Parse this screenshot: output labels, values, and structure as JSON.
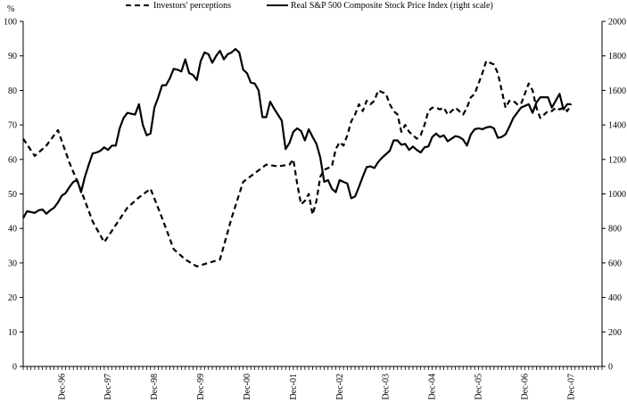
{
  "chart_data": {
    "type": "line",
    "title": "",
    "left_axis": {
      "label": "%",
      "ylim": [
        0,
        100
      ],
      "ticks": [
        "0",
        "10",
        "20",
        "30",
        "40",
        "50",
        "60",
        "70",
        "80",
        "90",
        "100"
      ]
    },
    "right_axis": {
      "label": "",
      "ylim": [
        0,
        2000
      ],
      "ticks": [
        "0",
        "200",
        "400",
        "600",
        "800",
        "1000",
        "1200",
        "1400",
        "1600",
        "1800",
        "2000"
      ]
    },
    "x_axis": {
      "range_months": [
        0,
        150
      ],
      "tick_labels": [
        "Dec-96",
        "Dec-97",
        "Dec-98",
        "Dec-99",
        "Dec-00",
        "Dec-01",
        "Dec-02",
        "Dec-03",
        "Dec-04",
        "Dec-05",
        "Dec-06",
        "Dec-07"
      ],
      "tick_label_months": [
        10,
        22,
        34,
        46,
        58,
        70,
        82,
        94,
        106,
        118,
        130,
        142
      ]
    },
    "legend": {
      "placement": "top"
    },
    "grid": false,
    "series": [
      {
        "name": "Investors' perceptions",
        "axis": "left",
        "style": "dashed",
        "color": "#000000",
        "points": [
          [
            0,
            66
          ],
          [
            3,
            61
          ],
          [
            6,
            64
          ],
          [
            9,
            68.5
          ],
          [
            12,
            59
          ],
          [
            15,
            51
          ],
          [
            18,
            42
          ],
          [
            21,
            36
          ],
          [
            24,
            41
          ],
          [
            27,
            46
          ],
          [
            30,
            49
          ],
          [
            33,
            51.5
          ],
          [
            36,
            43
          ],
          [
            39,
            34
          ],
          [
            42,
            31
          ],
          [
            45,
            29
          ],
          [
            48,
            30
          ],
          [
            51,
            31
          ],
          [
            54,
            43
          ],
          [
            57,
            53.5
          ],
          [
            60,
            56
          ],
          [
            63,
            58.5
          ],
          [
            66,
            58
          ],
          [
            69,
            58.5
          ],
          [
            70,
            60
          ],
          [
            71,
            53
          ],
          [
            72,
            47
          ],
          [
            73,
            48
          ],
          [
            74,
            50
          ],
          [
            75,
            44
          ],
          [
            76,
            48
          ],
          [
            77,
            55
          ],
          [
            78,
            57
          ],
          [
            79,
            57.5
          ],
          [
            80,
            58
          ],
          [
            81,
            63
          ],
          [
            82,
            65
          ],
          [
            83,
            64
          ],
          [
            84,
            67
          ],
          [
            85,
            71
          ],
          [
            86,
            73
          ],
          [
            87,
            76
          ],
          [
            88,
            74
          ],
          [
            89,
            77
          ],
          [
            90,
            76
          ],
          [
            91,
            77
          ],
          [
            92,
            80
          ],
          [
            93,
            79.5
          ],
          [
            94,
            79
          ],
          [
            95,
            76
          ],
          [
            96,
            74
          ],
          [
            97,
            73
          ],
          [
            98,
            68
          ],
          [
            99,
            70
          ],
          [
            100,
            68
          ],
          [
            101,
            67
          ],
          [
            102,
            66
          ],
          [
            103,
            67
          ],
          [
            104,
            70
          ],
          [
            105,
            74
          ],
          [
            106,
            75
          ],
          [
            107,
            75
          ],
          [
            108,
            74.5
          ],
          [
            109,
            75
          ],
          [
            110,
            73
          ],
          [
            111,
            74
          ],
          [
            112,
            75
          ],
          [
            113,
            74
          ],
          [
            114,
            73
          ],
          [
            115,
            75
          ],
          [
            116,
            78
          ],
          [
            117,
            79
          ],
          [
            118,
            82
          ],
          [
            119,
            85
          ],
          [
            120,
            88.5
          ],
          [
            121,
            88
          ],
          [
            122,
            87.5
          ],
          [
            123,
            85
          ],
          [
            124,
            80
          ],
          [
            125,
            75
          ],
          [
            126,
            77
          ],
          [
            127,
            77
          ],
          [
            128,
            76
          ],
          [
            129,
            76
          ],
          [
            130,
            79
          ],
          [
            131,
            82
          ],
          [
            132,
            80
          ],
          [
            133,
            75
          ],
          [
            134,
            72
          ],
          [
            135,
            73
          ],
          [
            136,
            74
          ],
          [
            137,
            74
          ],
          [
            138,
            75
          ],
          [
            139,
            74.5
          ],
          [
            140,
            75
          ],
          [
            141,
            74
          ],
          [
            142,
            76
          ]
        ]
      },
      {
        "name": "Real S&P 500 Composite Stock Price Index (right scale)",
        "axis": "right",
        "style": "solid",
        "color": "#000000",
        "points": [
          [
            0,
            860
          ],
          [
            1,
            900
          ],
          [
            2,
            895
          ],
          [
            3,
            890
          ],
          [
            4,
            905
          ],
          [
            5,
            910
          ],
          [
            6,
            885
          ],
          [
            7,
            905
          ],
          [
            8,
            920
          ],
          [
            9,
            950
          ],
          [
            10,
            990
          ],
          [
            11,
            1005
          ],
          [
            12,
            1040
          ],
          [
            13,
            1070
          ],
          [
            14,
            1080
          ],
          [
            15,
            1010
          ],
          [
            16,
            1100
          ],
          [
            17,
            1170
          ],
          [
            18,
            1235
          ],
          [
            19,
            1240
          ],
          [
            20,
            1250
          ],
          [
            21,
            1270
          ],
          [
            22,
            1255
          ],
          [
            23,
            1280
          ],
          [
            24,
            1280
          ],
          [
            25,
            1380
          ],
          [
            26,
            1440
          ],
          [
            27,
            1470
          ],
          [
            28,
            1465
          ],
          [
            29,
            1460
          ],
          [
            30,
            1520
          ],
          [
            31,
            1400
          ],
          [
            32,
            1340
          ],
          [
            33,
            1350
          ],
          [
            34,
            1500
          ],
          [
            35,
            1560
          ],
          [
            36,
            1630
          ],
          [
            37,
            1630
          ],
          [
            38,
            1670
          ],
          [
            39,
            1725
          ],
          [
            40,
            1720
          ],
          [
            41,
            1710
          ],
          [
            42,
            1780
          ],
          [
            43,
            1700
          ],
          [
            44,
            1690
          ],
          [
            45,
            1660
          ],
          [
            46,
            1770
          ],
          [
            47,
            1820
          ],
          [
            48,
            1810
          ],
          [
            49,
            1760
          ],
          [
            50,
            1800
          ],
          [
            51,
            1830
          ],
          [
            52,
            1780
          ],
          [
            53,
            1810
          ],
          [
            54,
            1820
          ],
          [
            55,
            1840
          ],
          [
            56,
            1820
          ],
          [
            57,
            1720
          ],
          [
            58,
            1700
          ],
          [
            59,
            1645
          ],
          [
            60,
            1640
          ],
          [
            61,
            1600
          ],
          [
            62,
            1445
          ],
          [
            63,
            1445
          ],
          [
            64,
            1535
          ],
          [
            65,
            1495
          ],
          [
            66,
            1460
          ],
          [
            67,
            1425
          ],
          [
            68,
            1260
          ],
          [
            69,
            1295
          ],
          [
            70,
            1360
          ],
          [
            71,
            1380
          ],
          [
            72,
            1365
          ],
          [
            73,
            1310
          ],
          [
            74,
            1375
          ],
          [
            75,
            1330
          ],
          [
            76,
            1290
          ],
          [
            77,
            1210
          ],
          [
            78,
            1070
          ],
          [
            79,
            1080
          ],
          [
            80,
            1030
          ],
          [
            81,
            1010
          ],
          [
            82,
            1080
          ],
          [
            83,
            1070
          ],
          [
            84,
            1060
          ],
          [
            85,
            975
          ],
          [
            86,
            985
          ],
          [
            87,
            1040
          ],
          [
            88,
            1100
          ],
          [
            89,
            1155
          ],
          [
            90,
            1160
          ],
          [
            91,
            1150
          ],
          [
            92,
            1185
          ],
          [
            93,
            1210
          ],
          [
            94,
            1230
          ],
          [
            95,
            1250
          ],
          [
            96,
            1310
          ],
          [
            97,
            1310
          ],
          [
            98,
            1285
          ],
          [
            99,
            1290
          ],
          [
            100,
            1255
          ],
          [
            101,
            1275
          ],
          [
            102,
            1255
          ],
          [
            103,
            1240
          ],
          [
            104,
            1270
          ],
          [
            105,
            1275
          ],
          [
            106,
            1330
          ],
          [
            107,
            1350
          ],
          [
            108,
            1330
          ],
          [
            109,
            1340
          ],
          [
            110,
            1305
          ],
          [
            111,
            1320
          ],
          [
            112,
            1335
          ],
          [
            113,
            1330
          ],
          [
            114,
            1315
          ],
          [
            115,
            1280
          ],
          [
            116,
            1345
          ],
          [
            117,
            1375
          ],
          [
            118,
            1380
          ],
          [
            119,
            1375
          ],
          [
            120,
            1385
          ],
          [
            121,
            1390
          ],
          [
            122,
            1380
          ],
          [
            123,
            1325
          ],
          [
            124,
            1330
          ],
          [
            125,
            1345
          ],
          [
            126,
            1390
          ],
          [
            127,
            1440
          ],
          [
            128,
            1470
          ],
          [
            129,
            1500
          ],
          [
            130,
            1510
          ],
          [
            131,
            1520
          ],
          [
            132,
            1470
          ],
          [
            133,
            1530
          ],
          [
            134,
            1560
          ],
          [
            135,
            1560
          ],
          [
            136,
            1560
          ],
          [
            137,
            1500
          ],
          [
            138,
            1540
          ],
          [
            139,
            1580
          ],
          [
            140,
            1490
          ],
          [
            141,
            1520
          ],
          [
            142,
            1520
          ]
        ]
      }
    ]
  }
}
